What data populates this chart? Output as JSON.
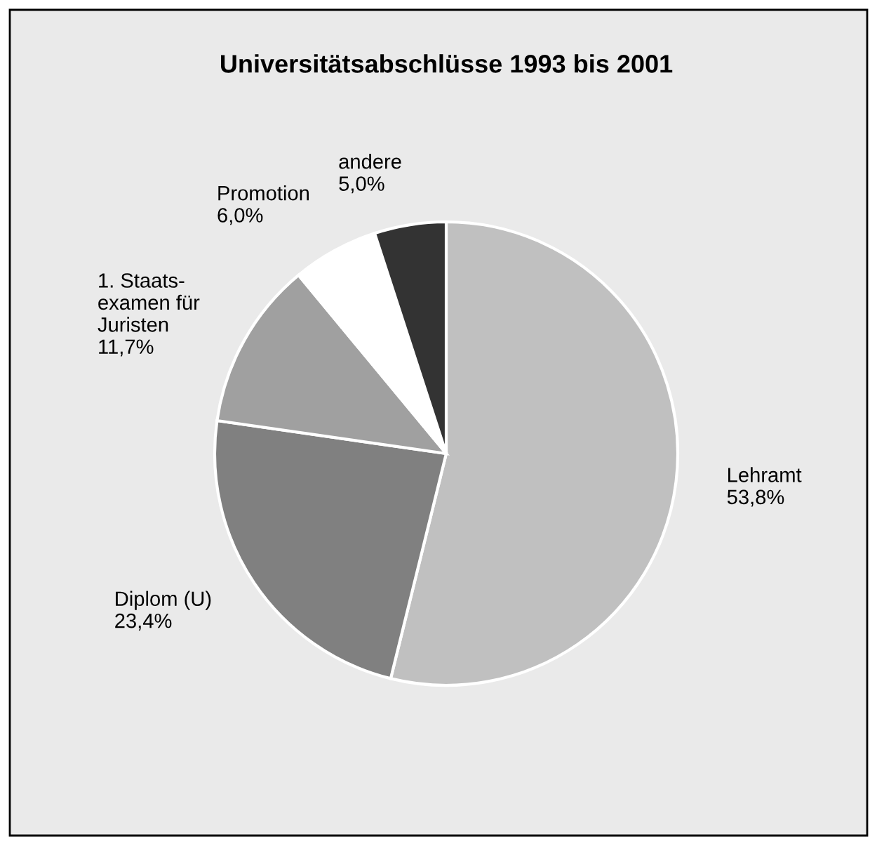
{
  "chart_data": {
    "type": "pie",
    "title": "Universitätsabschlüsse 1993 bis 2001",
    "categories": [
      "Lehramt",
      "Diplom (U)",
      "1. Staats-\nexamen für\nJuristen",
      "Promotion",
      "andere"
    ],
    "values": [
      53.8,
      23.4,
      11.7,
      6.0,
      5.0
    ],
    "value_labels": [
      "53,8%",
      "23,4%",
      "11,7%",
      "6,0%",
      "5,0%"
    ],
    "colors": [
      "#c0c0c0",
      "#808080",
      "#a0a0a0",
      "#ffffff",
      "#333333"
    ],
    "legend": false
  }
}
